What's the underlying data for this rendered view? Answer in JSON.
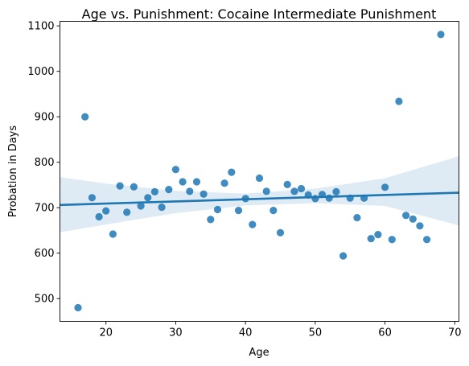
{
  "chart_data": {
    "type": "scatter",
    "title": "Age vs. Punishment: Cocaine Intermediate Punishment",
    "xlabel": "Age",
    "ylabel": "Probation in Days",
    "xlim": [
      13.4,
      70.6
    ],
    "ylim": [
      450,
      1110
    ],
    "xticks": [
      20,
      30,
      40,
      50,
      60,
      70
    ],
    "yticks": [
      500,
      600,
      700,
      800,
      900,
      1000,
      1100
    ],
    "grid": false,
    "legend": "none",
    "point_color": "#1f77b4",
    "points": [
      {
        "x": 16,
        "y": 480
      },
      {
        "x": 17,
        "y": 900
      },
      {
        "x": 18,
        "y": 722
      },
      {
        "x": 19,
        "y": 680
      },
      {
        "x": 20,
        "y": 693
      },
      {
        "x": 21,
        "y": 642
      },
      {
        "x": 22,
        "y": 748
      },
      {
        "x": 23,
        "y": 690
      },
      {
        "x": 24,
        "y": 746
      },
      {
        "x": 25,
        "y": 704
      },
      {
        "x": 26,
        "y": 722
      },
      {
        "x": 27,
        "y": 735
      },
      {
        "x": 28,
        "y": 701
      },
      {
        "x": 29,
        "y": 740
      },
      {
        "x": 30,
        "y": 784
      },
      {
        "x": 31,
        "y": 757
      },
      {
        "x": 32,
        "y": 736
      },
      {
        "x": 33,
        "y": 757
      },
      {
        "x": 34,
        "y": 730
      },
      {
        "x": 35,
        "y": 674
      },
      {
        "x": 36,
        "y": 696
      },
      {
        "x": 37,
        "y": 754
      },
      {
        "x": 38,
        "y": 778
      },
      {
        "x": 39,
        "y": 694
      },
      {
        "x": 40,
        "y": 720
      },
      {
        "x": 41,
        "y": 663
      },
      {
        "x": 42,
        "y": 765
      },
      {
        "x": 43,
        "y": 736
      },
      {
        "x": 44,
        "y": 694
      },
      {
        "x": 45,
        "y": 645
      },
      {
        "x": 46,
        "y": 751
      },
      {
        "x": 47,
        "y": 736
      },
      {
        "x": 48,
        "y": 742
      },
      {
        "x": 49,
        "y": 728
      },
      {
        "x": 50,
        "y": 720
      },
      {
        "x": 51,
        "y": 729
      },
      {
        "x": 52,
        "y": 721
      },
      {
        "x": 53,
        "y": 735
      },
      {
        "x": 54,
        "y": 594
      },
      {
        "x": 55,
        "y": 721
      },
      {
        "x": 56,
        "y": 678
      },
      {
        "x": 57,
        "y": 721
      },
      {
        "x": 58,
        "y": 632
      },
      {
        "x": 59,
        "y": 641
      },
      {
        "x": 60,
        "y": 745
      },
      {
        "x": 61,
        "y": 630
      },
      {
        "x": 62,
        "y": 934
      },
      {
        "x": 63,
        "y": 683
      },
      {
        "x": 64,
        "y": 675
      },
      {
        "x": 65,
        "y": 660
      },
      {
        "x": 66,
        "y": 630
      },
      {
        "x": 68,
        "y": 1081
      }
    ],
    "regression_line": {
      "x": [
        13.4,
        70.6
      ],
      "y": [
        706,
        733
      ]
    },
    "confidence_band": {
      "x": [
        13.4,
        20,
        30,
        40,
        50,
        60,
        70.6
      ],
      "upper": [
        767,
        753,
        737,
        731,
        742,
        765,
        813
      ],
      "lower": [
        646,
        663,
        688,
        705,
        710,
        704,
        661
      ]
    }
  }
}
